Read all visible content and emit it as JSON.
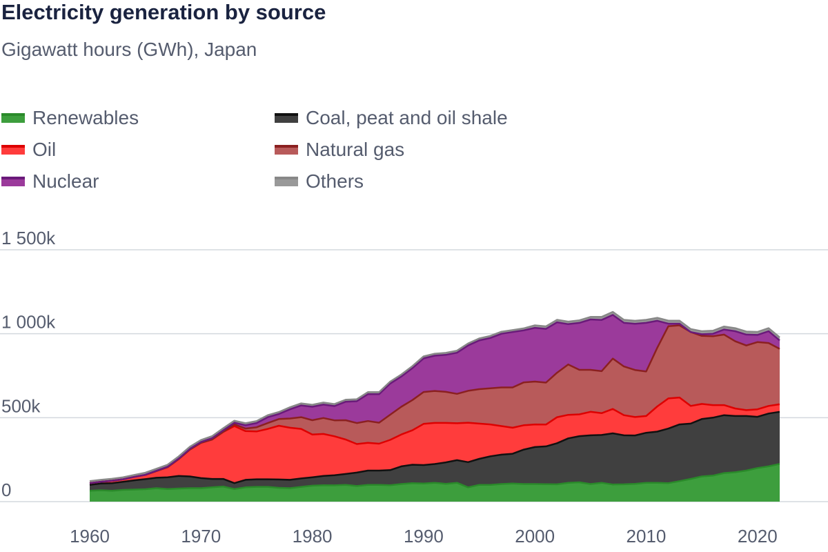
{
  "chart_data": {
    "type": "area",
    "stacked": true,
    "title": "Electricity generation by source",
    "subtitle": "Gigawatt hours (GWh), Japan",
    "ylim": [
      0,
      1500000
    ],
    "yticks": [
      {
        "value": 0,
        "label": "0"
      },
      {
        "value": 500000,
        "label": "500k"
      },
      {
        "value": 1000000,
        "label": "1 000k"
      },
      {
        "value": 1500000,
        "label": "1 500k"
      }
    ],
    "xlim": [
      1960,
      2026
    ],
    "xticks": [
      1960,
      1970,
      1980,
      1990,
      2000,
      2010,
      2020
    ],
    "grid": true,
    "legend_position": "top",
    "x": [
      1960,
      1961,
      1962,
      1963,
      1964,
      1965,
      1966,
      1967,
      1968,
      1969,
      1970,
      1971,
      1972,
      1973,
      1974,
      1975,
      1976,
      1977,
      1978,
      1979,
      1980,
      1981,
      1982,
      1983,
      1984,
      1985,
      1986,
      1987,
      1988,
      1989,
      1990,
      1991,
      1992,
      1993,
      1994,
      1995,
      1996,
      1997,
      1998,
      1999,
      2000,
      2001,
      2002,
      2003,
      2004,
      2005,
      2006,
      2007,
      2008,
      2009,
      2010,
      2011,
      2012,
      2013,
      2014,
      2015,
      2016,
      2017,
      2018,
      2019,
      2020,
      2021,
      2022
    ],
    "series": [
      {
        "name": "Renewables",
        "color": "#3d9e3d",
        "line": "#2a8a2a",
        "values": [
          65000,
          68000,
          65000,
          70000,
          72000,
          74000,
          80000,
          75000,
          78000,
          80000,
          80000,
          85000,
          90000,
          75000,
          85000,
          88000,
          88000,
          82000,
          80000,
          88000,
          95000,
          98000,
          97000,
          100000,
          93000,
          100000,
          100000,
          98000,
          105000,
          110000,
          108000,
          112000,
          106000,
          112000,
          85000,
          100000,
          100000,
          105000,
          108000,
          105000,
          105000,
          104000,
          103000,
          112000,
          115000,
          105000,
          112000,
          102000,
          103000,
          106000,
          112000,
          112000,
          110000,
          122000,
          135000,
          150000,
          155000,
          170000,
          175000,
          185000,
          200000,
          210000,
          225000
        ]
      },
      {
        "name": "Coal, peat and oil shale",
        "color": "#404040",
        "line": "#111111",
        "values": [
          35000,
          40000,
          45000,
          48000,
          55000,
          60000,
          62000,
          70000,
          75000,
          70000,
          60000,
          50000,
          45000,
          35000,
          45000,
          45000,
          45000,
          50000,
          50000,
          50000,
          50000,
          55000,
          60000,
          65000,
          80000,
          85000,
          85000,
          90000,
          105000,
          110000,
          110000,
          112000,
          128000,
          135000,
          150000,
          155000,
          170000,
          175000,
          177000,
          205000,
          220000,
          225000,
          245000,
          265000,
          275000,
          290000,
          285000,
          305000,
          292000,
          288000,
          298000,
          305000,
          325000,
          338000,
          330000,
          342000,
          345000,
          345000,
          335000,
          325000,
          305000,
          315000,
          310000
        ]
      },
      {
        "name": "Oil",
        "color": "#ff3c3c",
        "line": "#dd0000",
        "values": [
          10000,
          10000,
          14000,
          15000,
          20000,
          25000,
          40000,
          60000,
          100000,
          160000,
          210000,
          235000,
          280000,
          340000,
          290000,
          285000,
          300000,
          320000,
          310000,
          295000,
          255000,
          250000,
          232000,
          205000,
          170000,
          165000,
          160000,
          180000,
          190000,
          205000,
          245000,
          245000,
          235000,
          220000,
          235000,
          210000,
          190000,
          170000,
          155000,
          145000,
          135000,
          130000,
          155000,
          140000,
          130000,
          140000,
          130000,
          145000,
          120000,
          110000,
          100000,
          150000,
          180000,
          160000,
          105000,
          90000,
          75000,
          60000,
          45000,
          35000,
          45000,
          45000,
          45000
        ]
      },
      {
        "name": "Natural gas",
        "color": "#b85a5a",
        "line": "#8b2020",
        "values": [
          0,
          0,
          0,
          0,
          0,
          0,
          0,
          0,
          0,
          0,
          0,
          0,
          0,
          10000,
          15000,
          25000,
          35000,
          40000,
          55000,
          70000,
          85000,
          95000,
          95000,
          115000,
          125000,
          130000,
          125000,
          150000,
          165000,
          180000,
          190000,
          190000,
          185000,
          175000,
          190000,
          205000,
          215000,
          230000,
          240000,
          255000,
          255000,
          250000,
          265000,
          300000,
          265000,
          250000,
          250000,
          300000,
          290000,
          280000,
          265000,
          350000,
          430000,
          430000,
          440000,
          405000,
          410000,
          420000,
          400000,
          385000,
          400000,
          375000,
          330000
        ]
      },
      {
        "name": "Nuclear",
        "color": "#9b3a9b",
        "line": "#6a1a7a",
        "values": [
          0,
          0,
          0,
          0,
          0,
          1000,
          2000,
          3000,
          4000,
          5000,
          5000,
          8000,
          10000,
          10000,
          20000,
          25000,
          35000,
          30000,
          55000,
          70000,
          80000,
          80000,
          85000,
          110000,
          130000,
          160000,
          170000,
          185000,
          180000,
          190000,
          200000,
          210000,
          220000,
          245000,
          270000,
          290000,
          300000,
          320000,
          330000,
          310000,
          320000,
          320000,
          300000,
          240000,
          280000,
          300000,
          305000,
          260000,
          260000,
          275000,
          290000,
          160000,
          15000,
          10000,
          0,
          10000,
          15000,
          30000,
          60000,
          65000,
          43000,
          70000,
          50000
        ]
      },
      {
        "name": "Others",
        "color": "#999999",
        "line": "#888888",
        "values": [
          12000,
          12000,
          12000,
          12000,
          12000,
          12000,
          12000,
          12000,
          12000,
          12000,
          12000,
          12000,
          12000,
          12000,
          12000,
          12000,
          12000,
          12000,
          12000,
          12000,
          12000,
          12000,
          12000,
          12000,
          12000,
          12000,
          12000,
          12000,
          12000,
          12000,
          12000,
          12000,
          12000,
          12000,
          12000,
          12000,
          12000,
          12000,
          12000,
          12000,
          15000,
          15000,
          15000,
          15000,
          15000,
          15000,
          18000,
          18000,
          18000,
          18000,
          18000,
          18000,
          18000,
          18000,
          18000,
          18000,
          18000,
          18000,
          18000,
          18000,
          18000,
          18000,
          18000
        ]
      }
    ]
  }
}
